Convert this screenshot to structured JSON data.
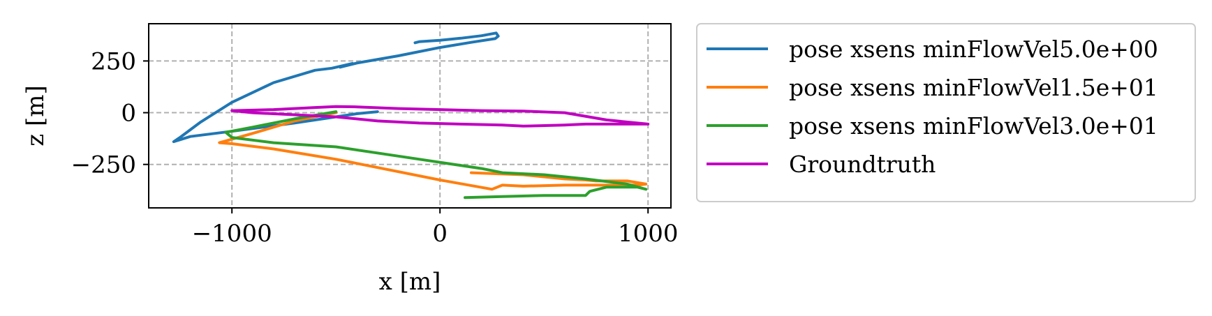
{
  "chart_data": {
    "type": "line",
    "xlabel": "x [m]",
    "ylabel": "z [m]",
    "xlim": [
      -1400,
      1110
    ],
    "ylim": [
      -460,
      430
    ],
    "x_ticks": [
      -1000,
      0,
      1000
    ],
    "x_tick_labels": [
      "−1000",
      "0",
      "1000"
    ],
    "y_ticks": [
      250,
      0,
      -250
    ],
    "y_tick_labels": [
      "250",
      "0",
      "−250"
    ],
    "grid": true,
    "legend_position": "outside-right",
    "series": [
      {
        "name": "pose xsens minFlowVel5.0e+00",
        "color": "#1f77b4",
        "x": [
          -120,
          -100,
          0,
          100,
          200,
          270,
          280,
          265,
          150,
          0,
          -200,
          -400,
          -480,
          -420,
          -520,
          -600,
          -800,
          -1000,
          -1150,
          -1250,
          -1280,
          -1200,
          -1000,
          -700,
          -500,
          -400,
          -300
        ],
        "y": [
          338,
          343,
          350,
          360,
          372,
          385,
          370,
          358,
          340,
          315,
          275,
          240,
          220,
          238,
          215,
          205,
          145,
          50,
          -45,
          -120,
          -140,
          -115,
          -90,
          -50,
          -20,
          -5,
          5
        ]
      },
      {
        "name": "pose xsens minFlowVel1.5e+01",
        "color": "#ff7f0e",
        "x": [
          -500,
          -700,
          -900,
          -1060,
          -1000,
          -800,
          -500,
          0,
          250,
          300,
          400,
          600,
          800,
          950,
          990,
          900,
          750,
          700,
          600,
          400,
          150
        ],
        "y": [
          0,
          -40,
          -100,
          -145,
          -150,
          -175,
          -225,
          -325,
          -370,
          -350,
          -355,
          -350,
          -350,
          -350,
          -345,
          -330,
          -330,
          -325,
          -320,
          -300,
          -290
        ]
      },
      {
        "name": "pose xsens minFlowVel3.0e+01",
        "color": "#2ca02c",
        "x": [
          -500,
          -700,
          -900,
          -1030,
          -1000,
          -800,
          -500,
          -200,
          0,
          200,
          300,
          500,
          700,
          900,
          990,
          950,
          800,
          720,
          700,
          500,
          300,
          120
        ],
        "y": [
          5,
          -30,
          -70,
          -95,
          -120,
          -145,
          -165,
          -210,
          -240,
          -270,
          -290,
          -300,
          -320,
          -345,
          -370,
          -360,
          -360,
          -380,
          -400,
          -400,
          -405,
          -410
        ]
      },
      {
        "name": "Groundtruth",
        "color": "#c000c0",
        "x": [
          -1000,
          -800,
          -600,
          -500,
          -400,
          -200,
          0,
          200,
          400,
          600,
          800,
          1000,
          900,
          700,
          600,
          400,
          300,
          100,
          -100,
          -300,
          -500,
          -700,
          -900,
          -1000
        ],
        "y": [
          10,
          15,
          25,
          30,
          28,
          20,
          15,
          10,
          8,
          0,
          -35,
          -55,
          -55,
          -55,
          -60,
          -65,
          -60,
          -55,
          -50,
          -40,
          -20,
          -10,
          0,
          10
        ]
      }
    ]
  }
}
